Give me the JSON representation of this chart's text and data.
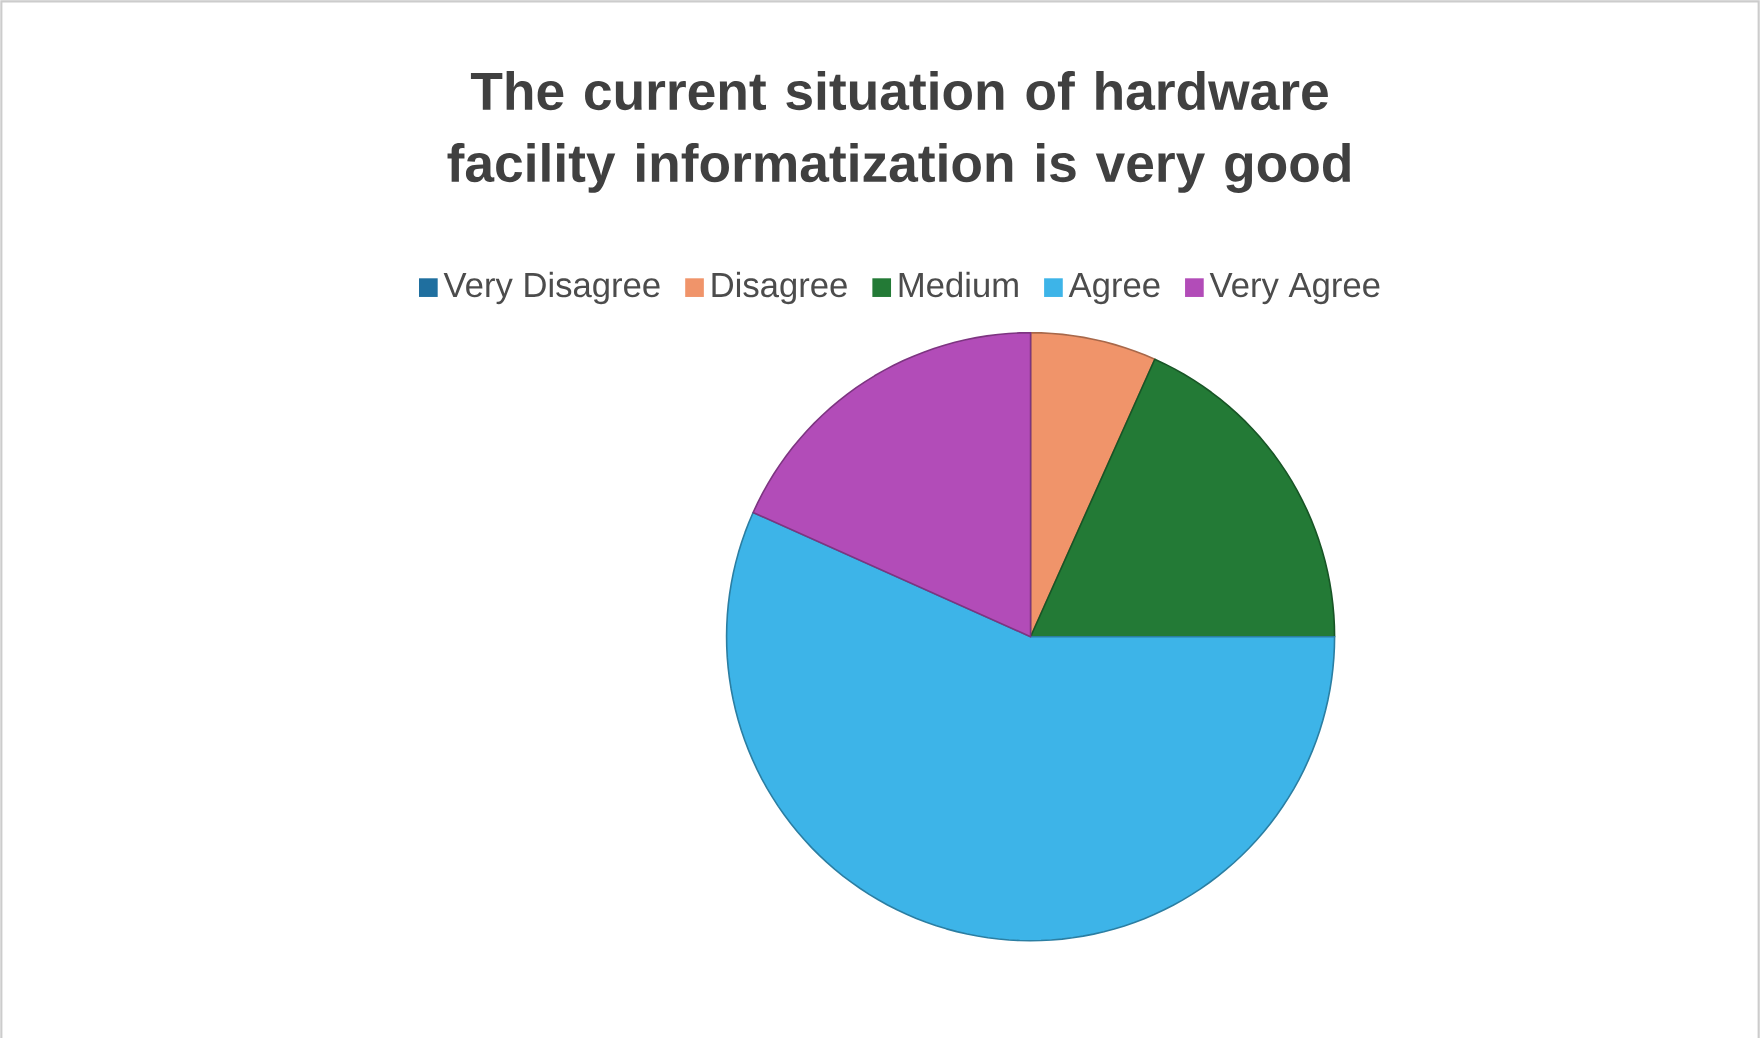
{
  "chart_data": {
    "type": "pie",
    "title": "The current situation of hardware facility informatization is very good",
    "categories": [
      "Very Disagree",
      "Disagree",
      "Medium",
      "Agree",
      "Very Agree"
    ],
    "values": [
      0,
      6.7,
      18.3,
      56.7,
      18.3
    ],
    "colors": [
      "#1f6f9f",
      "#f0946a",
      "#237a36",
      "#3db4e8",
      "#b24cb8"
    ],
    "legend": "top"
  }
}
